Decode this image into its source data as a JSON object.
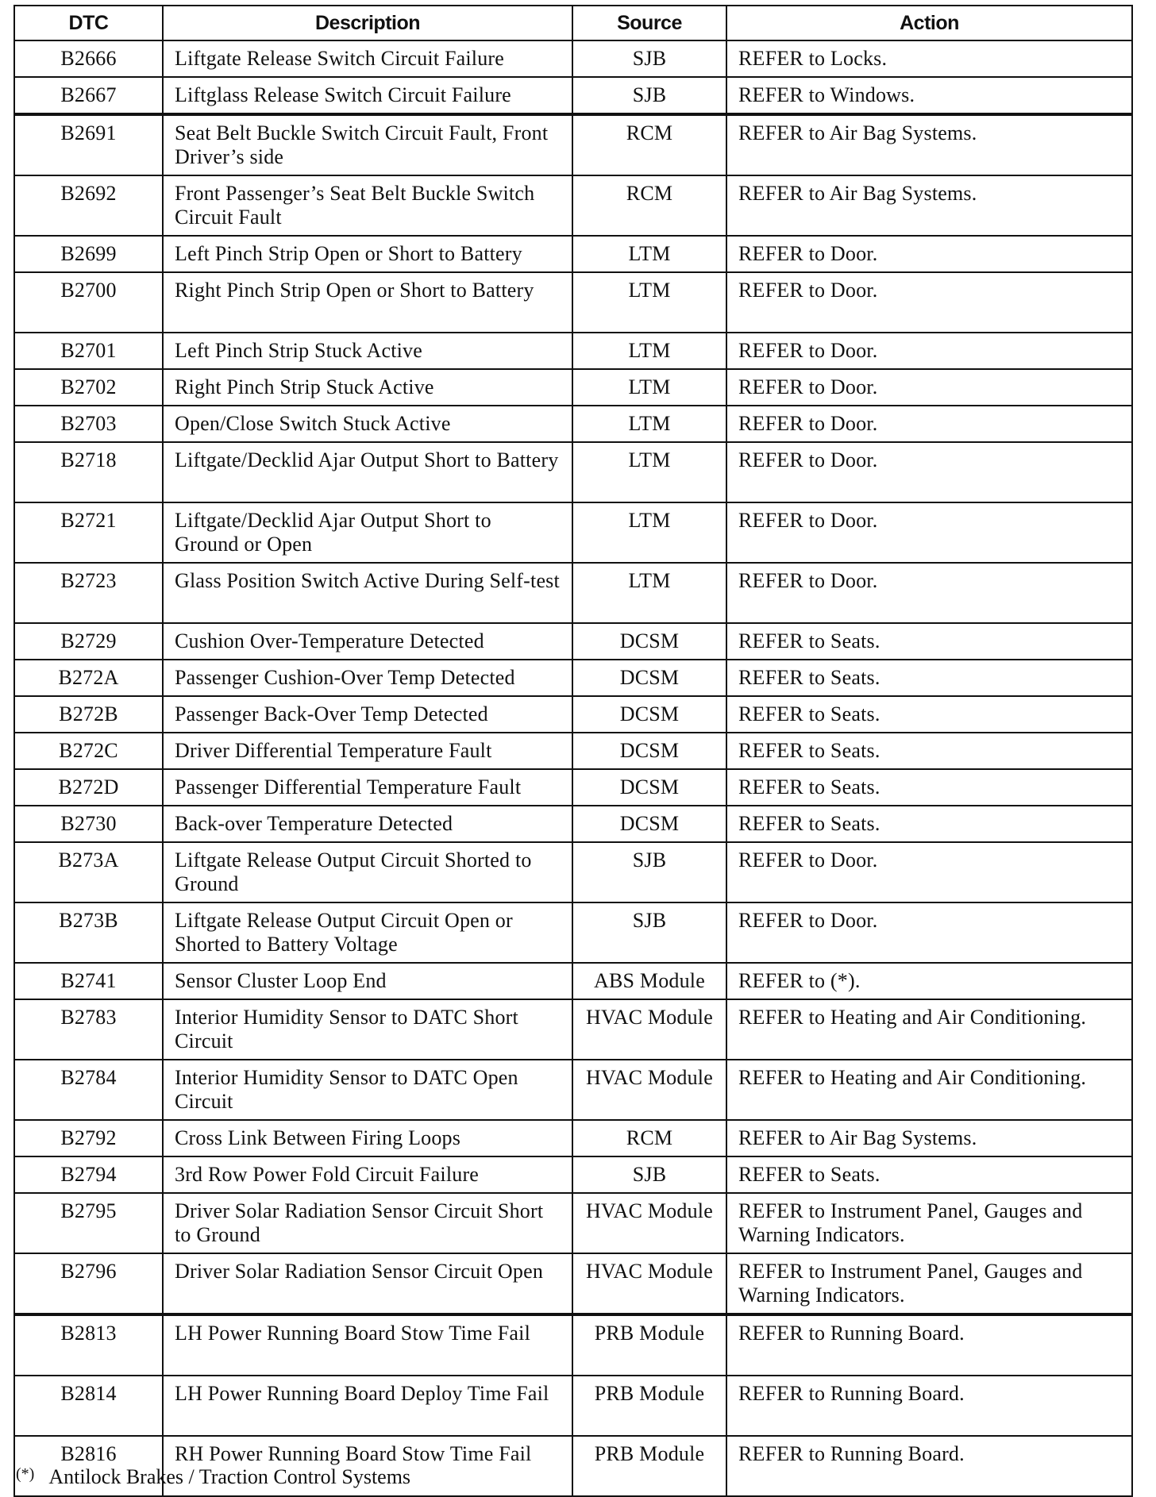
{
  "headers": [
    "DTC",
    "Description",
    "Source",
    "Action"
  ],
  "rows": [
    {
      "dtc": "B2666",
      "description": "Liftgate Release Switch Circuit Failure",
      "source": "SJB",
      "action": "REFER to Locks."
    },
    {
      "dtc": "B2667",
      "description": "Liftglass Release Switch Circuit Failure",
      "source": "SJB",
      "action": "REFER to Windows."
    },
    {
      "dtc": "B2691",
      "description": "Seat Belt Buckle Switch Circuit Fault, Front Driver’s side",
      "source": "RCM",
      "action": "REFER to Air Bag Systems."
    },
    {
      "dtc": "B2692",
      "description": "Front Passenger’s Seat Belt Buckle Switch Circuit Fault",
      "source": "RCM",
      "action": "REFER to Air Bag Systems."
    },
    {
      "dtc": "B2699",
      "description": "Left Pinch Strip Open or Short to Battery",
      "source": "LTM",
      "action": "REFER to Door."
    },
    {
      "dtc": "B2700",
      "description": "Right Pinch Strip Open or Short to Battery",
      "source": "LTM",
      "action": "REFER to Door."
    },
    {
      "dtc": "B2701",
      "description": "Left Pinch Strip Stuck Active",
      "source": "LTM",
      "action": "REFER to Door."
    },
    {
      "dtc": "B2702",
      "description": "Right Pinch Strip Stuck Active",
      "source": "LTM",
      "action": "REFER to Door."
    },
    {
      "dtc": "B2703",
      "description": "Open/Close Switch Stuck Active",
      "source": "LTM",
      "action": "REFER to Door."
    },
    {
      "dtc": "B2718",
      "description": "Liftgate/Decklid Ajar Output Short to Battery",
      "source": "LTM",
      "action": "REFER to Door."
    },
    {
      "dtc": "B2721",
      "description": "Liftgate/Decklid Ajar Output Short to Ground or Open",
      "source": "LTM",
      "action": "REFER to Door."
    },
    {
      "dtc": "B2723",
      "description": "Glass Position Switch Active During Self-test",
      "source": "LTM",
      "action": "REFER to Door."
    },
    {
      "dtc": "B2729",
      "description": "Cushion Over-Temperature Detected",
      "source": "DCSM",
      "action": "REFER to Seats."
    },
    {
      "dtc": "B272A",
      "description": "Passenger Cushion-Over Temp Detected",
      "source": "DCSM",
      "action": "REFER to Seats."
    },
    {
      "dtc": "B272B",
      "description": "Passenger Back-Over Temp Detected",
      "source": "DCSM",
      "action": "REFER to Seats."
    },
    {
      "dtc": "B272C",
      "description": "Driver Differential Temperature Fault",
      "source": "DCSM",
      "action": "REFER to Seats."
    },
    {
      "dtc": "B272D",
      "description": "Passenger Differential Temperature Fault",
      "source": "DCSM",
      "action": "REFER to Seats."
    },
    {
      "dtc": "B2730",
      "description": "Back-over Temperature Detected",
      "source": "DCSM",
      "action": "REFER to Seats."
    },
    {
      "dtc": "B273A",
      "description": "Liftgate Release Output Circuit Shorted to Ground",
      "source": "SJB",
      "action": "REFER to Door."
    },
    {
      "dtc": "B273B",
      "description": "Liftgate Release Output Circuit Open or Shorted to Battery Voltage",
      "source": "SJB",
      "action": "REFER to Door."
    },
    {
      "dtc": "B2741",
      "description": "Sensor Cluster Loop End",
      "source": "ABS Module",
      "action": "REFER to (*)."
    },
    {
      "dtc": "B2783",
      "description": "Interior Humidity Sensor to DATC Short Circuit",
      "source": "HVAC Module",
      "action": "REFER to Heating and Air Conditioning."
    },
    {
      "dtc": "B2784",
      "description": "Interior Humidity Sensor to DATC Open Circuit",
      "source": "HVAC Module",
      "action": "REFER to Heating and Air Conditioning."
    },
    {
      "dtc": "B2792",
      "description": "Cross Link Between Firing Loops",
      "source": "RCM",
      "action": "REFER to Air Bag Systems."
    },
    {
      "dtc": "B2794",
      "description": "3rd Row Power Fold Circuit Failure",
      "source": "SJB",
      "action": "REFER to Seats."
    },
    {
      "dtc": "B2795",
      "description": "Driver Solar Radiation Sensor Circuit Short to Ground",
      "source": "HVAC Module",
      "action": "REFER to Instrument Panel, Gauges and Warning Indicators."
    },
    {
      "dtc": "B2796",
      "description": "Driver Solar Radiation Sensor Circuit Open",
      "source": "HVAC Module",
      "action": "REFER to Instrument Panel, Gauges and Warning Indicators."
    },
    {
      "dtc": "B2813",
      "description": "LH Power Running Board Stow Time Fail",
      "source": "PRB Module",
      "action": "REFER to Running Board."
    },
    {
      "dtc": "B2814",
      "description": "LH Power Running Board Deploy Time Fail",
      "source": "PRB Module",
      "action": "REFER to Running Board."
    },
    {
      "dtc": "B2816",
      "description": "RH Power Running Board Stow Time Fail",
      "source": "PRB Module",
      "action": "REFER to Running Board."
    }
  ],
  "footnote": {
    "mark": "(*)",
    "text": "Antilock Brakes / Traction Control Systems"
  }
}
